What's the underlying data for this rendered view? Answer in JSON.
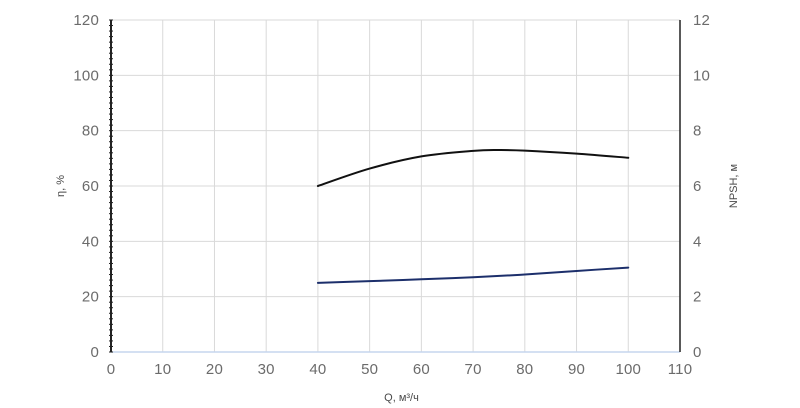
{
  "chart_data": {
    "type": "line",
    "xlabel": "Q, м³/ч",
    "ylabel_left": "η, %",
    "ylabel_right": "NPSH, м",
    "xlim": [
      0,
      110
    ],
    "ylim_left": [
      0,
      120
    ],
    "ylim_right": [
      0,
      12
    ],
    "x_ticks": [
      "0",
      "10",
      "20",
      "30",
      "40",
      "50",
      "60",
      "70",
      "80",
      "90",
      "100",
      "110"
    ],
    "y_ticks_left": [
      "0",
      "20",
      "40",
      "60",
      "80",
      "100",
      "120"
    ],
    "y_ticks_right": [
      "0",
      "2",
      "4",
      "6",
      "8",
      "10",
      "12"
    ],
    "grid": true,
    "legend": "none",
    "series": [
      {
        "axis": "left",
        "color": "#111111",
        "x": [
          40,
          50,
          60,
          70,
          75,
          80,
          90,
          100
        ],
        "y": [
          60,
          66.3,
          70.7,
          72.7,
          73,
          72.8,
          71.7,
          70.2
        ]
      },
      {
        "axis": "right",
        "color": "#1c2f6b",
        "x": [
          40,
          50,
          60,
          70,
          80,
          90,
          100
        ],
        "y": [
          2.5,
          2.56,
          2.63,
          2.7,
          2.8,
          2.93,
          3.05
        ]
      }
    ]
  }
}
